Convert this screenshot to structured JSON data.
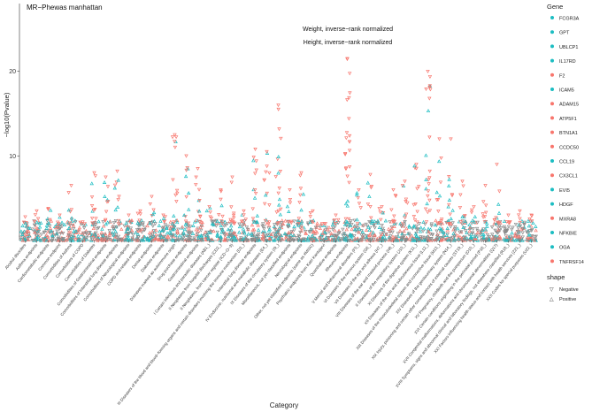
{
  "chart_data": {
    "type": "scatter",
    "title": "MR−Phewas manhattan",
    "xlabel": "Category",
    "ylabel": "−log10(Pvalue)",
    "ylim": [
      0,
      28
    ],
    "yticks": [
      10,
      20
    ],
    "grid": false,
    "legend_position": "right",
    "annotations": [
      "Weight, inverse−rank normalized",
      "Height, inverse−rank normalized"
    ],
    "categories": [
      "Alcohol disorders",
      "Asthma endpoints",
      "Cardiometabolic endpoints",
      "Common endpoint",
      "Comorbidities of Asthma",
      "Comorbidities of COPD",
      "Comorbidities of Diabetes",
      "Comorbidities of Gastrointestinal endpoints",
      "Comorbidities of Interstitial lung disease endpoints",
      "Comorbidities of Neurological endpoints",
      "COPD and related endpoints",
      "Dental endpoints",
      "Diabetes endpoints",
      "Diseases marked as autoimmune origin",
      "Drug purchase endpoints",
      "Gastrointestinal endpoints",
      "I Certain infectious and parasitic diseases (AB1_)",
      "II Neoplasms from hospital discharges (CD2_)",
      "II Neoplasms, from cancer register (ICD−O−3)",
      "III Diseases of the blood and blood−forming organs and certain disorders involving the immune mechanism (D3_)",
      "Interstitial lung disease endpoints",
      "IV Endocrine, nutritional and metabolic diseases (E4_)",
      "IX Diseases of the circulatory system (I9_)",
      "Miscellaneous, not yet classified endpoints",
      "Neurological endpoints",
      "Other, not yet classified endpoints (same as #MISC)",
      "Psychiatric endpoints from Katri Kantojarvi",
      "Quantitative endpoints",
      "Rheuma endpoints",
      "V Mental and behavioural disorders (F5_)",
      "VI Diseases of the nervous system (G6_)",
      "VII Diseases of the eye and adnexa (H7_)",
      "VIII Diseases of the ear and mastoid process (H8_)",
      "X Diseases of the respiratory system (J10_)",
      "XI Diseases of the digestive system (K11_)",
      "XII Diseases of the skin and subcutaneous tissue (L12_)",
      "XIII Diseases of the musculoskeletal system and connective tissue (M13_)",
      "XIV Diseases of the genitourinary system (N14_)",
      "XIX Injury, poisoning and certain other consequences of external causes (ST19_)",
      "XV Pregnancy, childbirth and the puerperium (O15_)",
      "XVI Certain conditions originating in the perinatal period (P16_)",
      "XVII Congenital malformations, deformations and chromosomal abnormalities (Q17)",
      "XVIII Symptoms, signs and abnormal clinical and laboratory findings, not elsewhere classified (R18_)",
      "XXI Factors influencing health status and contact with health services (Z21_)",
      "XXII Codes for special purposes (U22_)"
    ],
    "category_max": [
      2.8,
      3.5,
      3.8,
      3.0,
      6.5,
      2.2,
      8.0,
      7.5,
      8.2,
      3.0,
      3.5,
      5.2,
      3.0,
      12.5,
      10.0,
      8.5,
      4.0,
      6.0,
      7.5,
      3.5,
      10.8,
      10.5,
      16.0,
      6.0,
      8.0,
      3.5,
      2.0,
      3.0,
      21.5,
      6.0,
      7.8,
      4.0,
      6.0,
      7.0,
      9.0,
      20.0,
      12.0,
      12.0,
      7.0,
      4.0,
      6.5,
      9.0,
      3.0,
      3.5,
      3.0
    ],
    "series": [
      {
        "name": "FCGR3A",
        "color": "#1cbdc2"
      },
      {
        "name": "GPT",
        "color": "#1cbdc2"
      },
      {
        "name": "UBLCP1",
        "color": "#1cbdc2"
      },
      {
        "name": "IL17RD",
        "color": "#1cbdc2"
      },
      {
        "name": "F2",
        "color": "#f8766d"
      },
      {
        "name": "ICAM5",
        "color": "#1cbdc2"
      },
      {
        "name": "ADAM15",
        "color": "#f8766d"
      },
      {
        "name": "ATP5F1",
        "color": "#f8766d"
      },
      {
        "name": "BTN1A1",
        "color": "#f8766d"
      },
      {
        "name": "CCDC50",
        "color": "#f8766d"
      },
      {
        "name": "CCL19",
        "color": "#1cbdc2"
      },
      {
        "name": "CX3CL1",
        "color": "#f8766d"
      },
      {
        "name": "EVI5",
        "color": "#1cbdc2"
      },
      {
        "name": "HDGF",
        "color": "#1cbdc2"
      },
      {
        "name": "MXRA8",
        "color": "#f8766d"
      },
      {
        "name": "NFKBIE",
        "color": "#1cbdc2"
      },
      {
        "name": "OGA",
        "color": "#1cbdc2"
      },
      {
        "name": "TNFRSF14",
        "color": "#f8766d"
      }
    ],
    "legend_title": "Gene",
    "shape_legend_title": "shape",
    "shape_legend": [
      {
        "label": "Negative",
        "glyph": "▽"
      },
      {
        "label": "Positive",
        "glyph": "△"
      }
    ],
    "colors": {
      "positive": "#1cbdc2",
      "negative": "#f8766d",
      "axis": "#333333"
    }
  }
}
